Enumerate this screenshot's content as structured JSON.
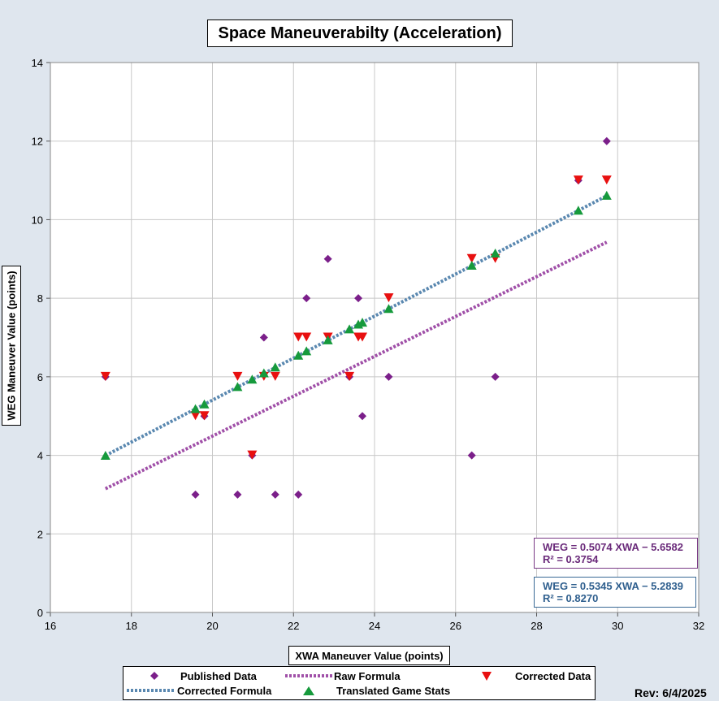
{
  "chart_data": {
    "type": "scatter",
    "title": "Space Maneuverabilty (Acceleration)",
    "xlabel": "XWA Maneuver Value (points)",
    "ylabel": "WEG Maneuver Value (points)",
    "xlim": [
      16,
      32
    ],
    "ylim": [
      0,
      14
    ],
    "xticks": [
      16,
      18,
      20,
      22,
      24,
      26,
      28,
      30,
      32
    ],
    "yticks": [
      0,
      2,
      4,
      6,
      8,
      10,
      12,
      14
    ],
    "grid": true,
    "legend_position": "bottom",
    "series": [
      {
        "name": "Published Data",
        "marker": "diamond",
        "color": "#7b1f8a",
        "points": [
          [
            17.36,
            6
          ],
          [
            19.58,
            3
          ],
          [
            19.8,
            5
          ],
          [
            20.62,
            3
          ],
          [
            20.98,
            4
          ],
          [
            21.27,
            7
          ],
          [
            21.55,
            3
          ],
          [
            22.12,
            3
          ],
          [
            22.32,
            8
          ],
          [
            22.85,
            9
          ],
          [
            23.38,
            6
          ],
          [
            23.6,
            8
          ],
          [
            23.7,
            5
          ],
          [
            24.35,
            6
          ],
          [
            26.4,
            4
          ],
          [
            26.98,
            6
          ],
          [
            29.03,
            11
          ],
          [
            29.73,
            12
          ]
        ]
      },
      {
        "name": "Corrected Data",
        "marker": "triangle-down",
        "color": "#e81010",
        "points": [
          [
            17.36,
            6
          ],
          [
            19.58,
            5
          ],
          [
            19.8,
            5
          ],
          [
            20.62,
            6
          ],
          [
            20.98,
            4
          ],
          [
            21.27,
            6
          ],
          [
            21.55,
            6
          ],
          [
            22.12,
            7
          ],
          [
            22.32,
            7
          ],
          [
            22.85,
            7
          ],
          [
            23.38,
            6
          ],
          [
            23.6,
            7
          ],
          [
            23.7,
            7
          ],
          [
            24.35,
            8
          ],
          [
            26.4,
            9
          ],
          [
            26.98,
            9
          ],
          [
            29.03,
            11
          ],
          [
            29.73,
            11
          ]
        ]
      },
      {
        "name": "Translated Game Stats",
        "marker": "triangle-up",
        "color": "#169a3c",
        "points": [
          [
            17.36,
            3.99
          ],
          [
            19.58,
            5.18
          ],
          [
            19.8,
            5.3
          ],
          [
            20.62,
            5.74
          ],
          [
            20.98,
            5.93
          ],
          [
            21.27,
            6.09
          ],
          [
            21.55,
            6.24
          ],
          [
            22.12,
            6.54
          ],
          [
            22.32,
            6.65
          ],
          [
            22.85,
            6.93
          ],
          [
            23.38,
            7.21
          ],
          [
            23.6,
            7.33
          ],
          [
            23.7,
            7.38
          ],
          [
            24.35,
            7.73
          ],
          [
            26.4,
            8.83
          ],
          [
            26.98,
            9.14
          ],
          [
            29.03,
            10.23
          ],
          [
            29.73,
            10.61
          ]
        ]
      }
    ],
    "lines": [
      {
        "name": "Raw Formula",
        "color": "#a050a8",
        "slope": 0.5074,
        "intercept": -5.6582,
        "x_range": [
          17.36,
          29.73
        ]
      },
      {
        "name": "Corrected Formula",
        "color": "#5a88b0",
        "slope": 0.5345,
        "intercept": -5.2839,
        "x_range": [
          17.36,
          29.73
        ]
      }
    ],
    "equations": {
      "raw": {
        "line1": "WEG = 0.5074 XWA − 5.6582",
        "line2": "R² = 0.3754",
        "color": "#6a2a7a"
      },
      "corrected": {
        "line1": "WEG = 0.5345 XWA − 5.2839",
        "line2": "R² = 0.8270",
        "color": "#2f5f8e"
      }
    }
  },
  "legend": {
    "published": "Published Data",
    "raw_formula": "Raw Formula",
    "corrected_data": "Corrected Data",
    "corrected_formula": "Corrected Formula",
    "translated": "Translated Game Stats"
  },
  "footer": {
    "revision": "Rev: 6/4/2025"
  }
}
